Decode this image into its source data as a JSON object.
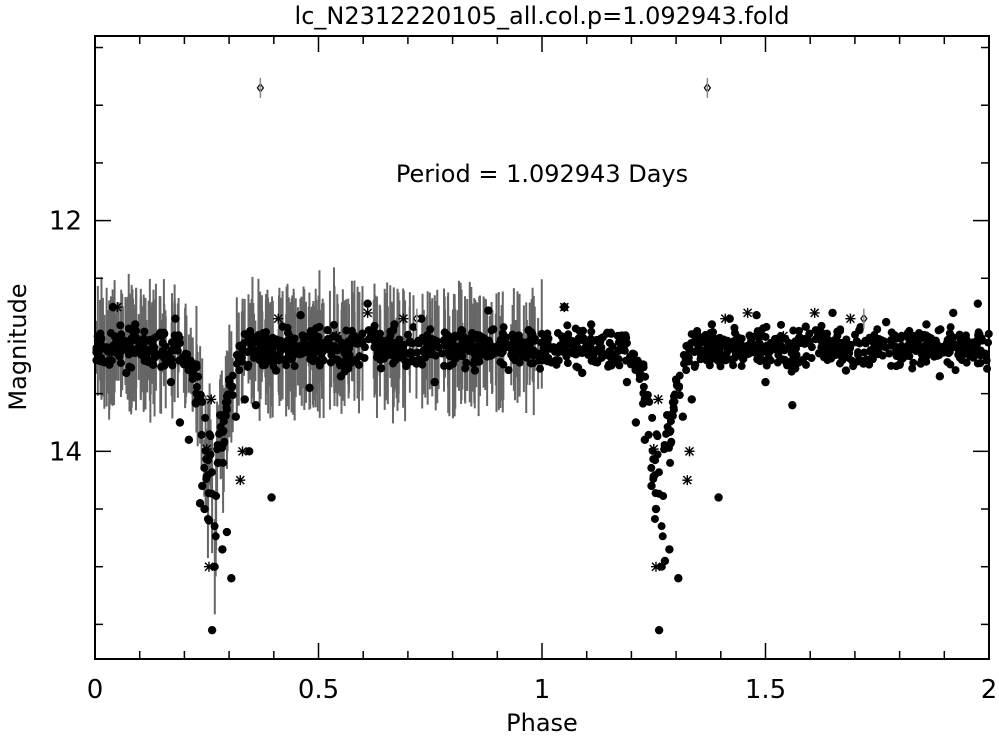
{
  "chart_data": {
    "type": "scatter",
    "title": "lc_N2312220105_all.col.p=1.092943.fold",
    "xlabel": "Phase",
    "ylabel": "Magnitude",
    "annotation": "Period = 1.092943 Days",
    "xlim": [
      0,
      2
    ],
    "ylim": [
      15.8,
      10.4
    ],
    "y_inverted": true,
    "xticks": [
      {
        "value": 0,
        "label": "0"
      },
      {
        "value": 0.5,
        "label": "0.5"
      },
      {
        "value": 1,
        "label": "1"
      },
      {
        "value": 1.5,
        "label": "1.5"
      },
      {
        "value": 2,
        "label": "2"
      }
    ],
    "yticks": [
      {
        "value": 12,
        "label": "12"
      },
      {
        "value": 14,
        "label": "14"
      }
    ],
    "period_days": 1.092943,
    "model": {
      "baseline_mag": 13.1,
      "scatter_mag": 0.13,
      "eclipse_center_phase": 0.265,
      "eclipse_half_width_phase": 0.07,
      "eclipse_depth_mag": 2.1,
      "errorbar_phase_max": 1.0,
      "errorbar_half_len_mag": 0.38
    },
    "series": [
      {
        "marker": "filled-circle",
        "points": [
          [
            0.02,
            13.1
          ],
          [
            0.04,
            12.75
          ],
          [
            0.05,
            13.15
          ],
          [
            0.07,
            13.32
          ],
          [
            0.09,
            12.9
          ],
          [
            0.11,
            13.05
          ],
          [
            0.13,
            13.25
          ],
          [
            0.15,
            13.0
          ],
          [
            0.17,
            13.4
          ],
          [
            0.18,
            12.85
          ],
          [
            0.19,
            13.75
          ],
          [
            0.21,
            13.9
          ],
          [
            0.225,
            13.58
          ],
          [
            0.235,
            14.45
          ],
          [
            0.24,
            14.3
          ],
          [
            0.245,
            14.5
          ],
          [
            0.255,
            14.6
          ],
          [
            0.262,
            15.55
          ],
          [
            0.275,
            14.1
          ],
          [
            0.285,
            14.85
          ],
          [
            0.295,
            14.7
          ],
          [
            0.305,
            15.1
          ],
          [
            0.315,
            13.7
          ],
          [
            0.335,
            13.55
          ],
          [
            0.345,
            14.0
          ],
          [
            0.36,
            13.6
          ],
          [
            0.38,
            13.25
          ],
          [
            0.395,
            14.4
          ],
          [
            0.405,
            13.3
          ],
          [
            0.42,
            12.92
          ],
          [
            0.44,
            13.2
          ],
          [
            0.46,
            12.82
          ],
          [
            0.48,
            13.45
          ],
          [
            0.5,
            13.05
          ],
          [
            0.52,
            12.95
          ],
          [
            0.55,
            13.35
          ],
          [
            0.58,
            13.0
          ],
          [
            0.61,
            12.72
          ],
          [
            0.64,
            13.28
          ],
          [
            0.67,
            12.9
          ],
          [
            0.7,
            13.15
          ],
          [
            0.73,
            12.85
          ],
          [
            0.76,
            13.4
          ],
          [
            0.79,
            13.05
          ],
          [
            0.82,
            12.95
          ],
          [
            0.85,
            13.3
          ],
          [
            0.88,
            12.78
          ],
          [
            0.91,
            13.1
          ],
          [
            0.94,
            13.2
          ],
          [
            0.97,
            12.95
          ],
          [
            1.02,
            13.1
          ],
          [
            1.05,
            12.75
          ],
          [
            1.07,
            13.15
          ],
          [
            1.09,
            13.32
          ],
          [
            1.11,
            12.9
          ],
          [
            1.13,
            13.05
          ],
          [
            1.15,
            13.25
          ],
          [
            1.17,
            13.0
          ],
          [
            1.19,
            13.4
          ],
          [
            1.21,
            13.75
          ],
          [
            1.23,
            13.9
          ],
          [
            1.245,
            14.3
          ],
          [
            1.255,
            14.5
          ],
          [
            1.262,
            15.55
          ],
          [
            1.275,
            14.95
          ],
          [
            1.285,
            14.85
          ],
          [
            1.305,
            15.1
          ],
          [
            1.315,
            13.7
          ],
          [
            1.335,
            13.55
          ],
          [
            1.355,
            13.2
          ],
          [
            1.38,
            12.9
          ],
          [
            1.395,
            14.4
          ],
          [
            1.42,
            12.85
          ],
          [
            1.45,
            13.2
          ],
          [
            1.48,
            12.82
          ],
          [
            1.5,
            13.4
          ],
          [
            1.53,
            13.05
          ],
          [
            1.56,
            13.6
          ],
          [
            1.59,
            12.92
          ],
          [
            1.62,
            13.15
          ],
          [
            1.65,
            12.8
          ],
          [
            1.68,
            13.3
          ],
          [
            1.71,
            12.95
          ],
          [
            1.74,
            13.2
          ],
          [
            1.77,
            12.88
          ],
          [
            1.8,
            13.25
          ],
          [
            1.83,
            13.0
          ],
          [
            1.86,
            12.9
          ],
          [
            1.89,
            13.35
          ],
          [
            1.92,
            12.8
          ],
          [
            1.95,
            13.1
          ],
          [
            1.975,
            12.72
          ]
        ]
      },
      {
        "marker": "asterisk",
        "points": [
          [
            0.05,
            12.75
          ],
          [
            0.25,
            13.98
          ],
          [
            0.255,
            15.0
          ],
          [
            0.26,
            13.55
          ],
          [
            0.325,
            14.25
          ],
          [
            0.33,
            14.0
          ],
          [
            0.41,
            12.85
          ],
          [
            0.54,
            13.0
          ],
          [
            0.61,
            12.8
          ],
          [
            0.69,
            12.85
          ],
          [
            0.73,
            13.05
          ],
          [
            1.05,
            12.75
          ],
          [
            1.25,
            13.98
          ],
          [
            1.255,
            15.0
          ],
          [
            1.26,
            13.55
          ],
          [
            1.325,
            14.25
          ],
          [
            1.33,
            14.0
          ],
          [
            1.41,
            12.85
          ],
          [
            1.46,
            12.8
          ],
          [
            1.54,
            13.0
          ],
          [
            1.61,
            12.8
          ],
          [
            1.69,
            12.85
          ],
          [
            1.73,
            13.05
          ]
        ]
      },
      {
        "marker": "diamond",
        "points": [
          [
            0.37,
            10.85
          ],
          [
            1.37,
            10.85
          ],
          [
            0.72,
            12.85
          ],
          [
            1.72,
            12.85
          ]
        ]
      }
    ]
  }
}
